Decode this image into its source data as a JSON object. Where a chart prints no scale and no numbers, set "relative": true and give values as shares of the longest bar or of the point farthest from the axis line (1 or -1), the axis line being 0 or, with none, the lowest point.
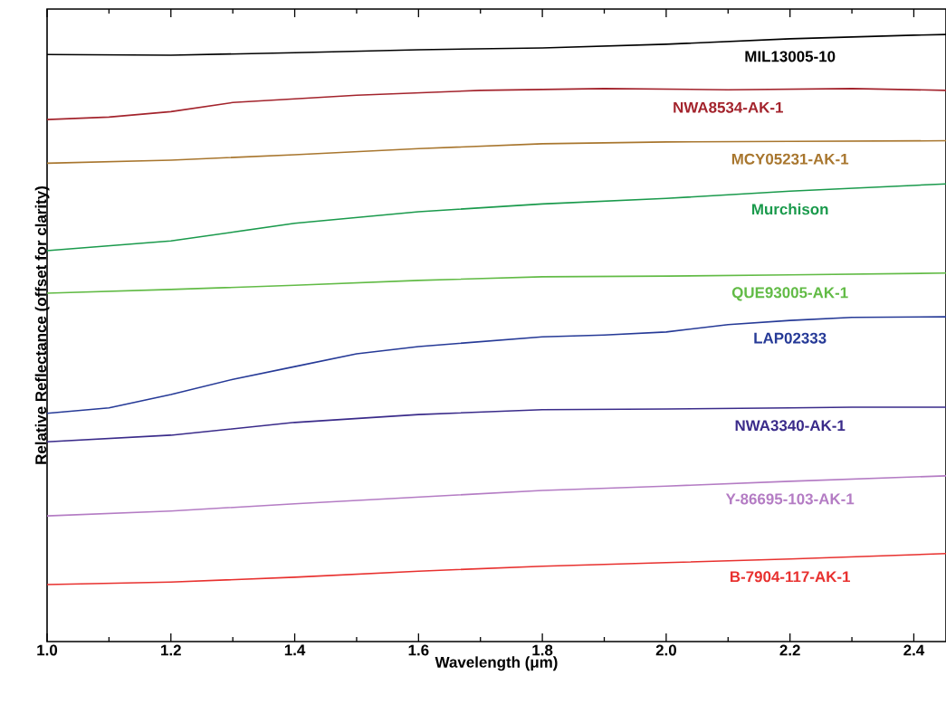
{
  "chart_data": {
    "type": "line",
    "relative": true,
    "xlabel": "Wavelength (μm)",
    "ylabel": "Relative Reflectance (offset for clarity)",
    "xlim": [
      1.0,
      2.452
    ],
    "xticks": [
      {
        "value": 1.0,
        "label": "1.0"
      },
      {
        "value": 1.2,
        "label": "1.2"
      },
      {
        "value": 1.4,
        "label": "1.4"
      },
      {
        "value": 1.6,
        "label": "1.6"
      },
      {
        "value": 1.8,
        "label": "1.8"
      },
      {
        "value": 2.0,
        "label": "2.0"
      },
      {
        "value": 2.2,
        "label": "2.2"
      },
      {
        "value": 2.4,
        "label": "2.4"
      }
    ],
    "grid": false,
    "legend": false,
    "marker": "none",
    "line_style": "solid",
    "series": [
      {
        "name": "MIL13005-10",
        "color": "#000000",
        "x": [
          1.0,
          1.2,
          1.4,
          1.6,
          1.8,
          2.0,
          2.2,
          2.4,
          2.452
        ],
        "values": [
          0.967,
          0.966,
          0.97,
          0.975,
          0.978,
          0.984,
          0.993,
          0.999,
          1.0
        ]
      },
      {
        "name": "NWA8534-AK-1",
        "color": "#a3232c",
        "x": [
          1.0,
          1.1,
          1.2,
          1.3,
          1.5,
          1.7,
          1.9,
          2.1,
          2.3,
          2.452
        ],
        "values": [
          0.86,
          0.864,
          0.873,
          0.888,
          0.9,
          0.908,
          0.911,
          0.909,
          0.911,
          0.908
        ]
      },
      {
        "name": "MCY05231-AK-1",
        "color": "#a8762e",
        "x": [
          1.0,
          1.2,
          1.4,
          1.6,
          1.8,
          2.0,
          2.2,
          2.452
        ],
        "values": [
          0.788,
          0.793,
          0.802,
          0.812,
          0.82,
          0.823,
          0.824,
          0.825
        ]
      },
      {
        "name": "Murchison",
        "color": "#1a9a4c",
        "x": [
          1.0,
          1.2,
          1.4,
          1.6,
          1.8,
          2.0,
          2.2,
          2.452
        ],
        "values": [
          0.644,
          0.66,
          0.689,
          0.708,
          0.721,
          0.73,
          0.742,
          0.754
        ]
      },
      {
        "name": "QUE93005-AK-1",
        "color": "#62bb46",
        "x": [
          1.0,
          1.2,
          1.4,
          1.6,
          1.8,
          2.0,
          2.2,
          2.452
        ],
        "values": [
          0.574,
          0.58,
          0.587,
          0.595,
          0.601,
          0.602,
          0.604,
          0.607
        ]
      },
      {
        "name": "LAP02333",
        "color": "#263a97",
        "x": [
          1.0,
          1.1,
          1.2,
          1.3,
          1.4,
          1.5,
          1.6,
          1.8,
          1.9,
          2.0,
          2.1,
          2.2,
          2.3,
          2.452
        ],
        "values": [
          0.376,
          0.385,
          0.407,
          0.432,
          0.453,
          0.474,
          0.486,
          0.502,
          0.505,
          0.51,
          0.522,
          0.529,
          0.534,
          0.535
        ]
      },
      {
        "name": "NWA3340-AK-1",
        "color": "#3a2b8a",
        "x": [
          1.0,
          1.2,
          1.4,
          1.6,
          1.8,
          2.0,
          2.2,
          2.3,
          2.452
        ],
        "values": [
          0.329,
          0.34,
          0.361,
          0.374,
          0.382,
          0.383,
          0.385,
          0.386,
          0.386
        ]
      },
      {
        "name": "Y-86695-103-AK-1",
        "color": "#b47cc4",
        "x": [
          1.0,
          1.2,
          1.4,
          1.6,
          1.8,
          2.0,
          2.2,
          2.452
        ],
        "values": [
          0.207,
          0.215,
          0.227,
          0.238,
          0.249,
          0.256,
          0.264,
          0.273
        ]
      },
      {
        "name": "B-7904-117-AK-1",
        "color": "#e8312f",
        "x": [
          1.0,
          1.2,
          1.4,
          1.6,
          1.8,
          2.0,
          2.2,
          2.452
        ],
        "values": [
          0.094,
          0.098,
          0.106,
          0.116,
          0.124,
          0.13,
          0.136,
          0.145
        ]
      }
    ]
  }
}
